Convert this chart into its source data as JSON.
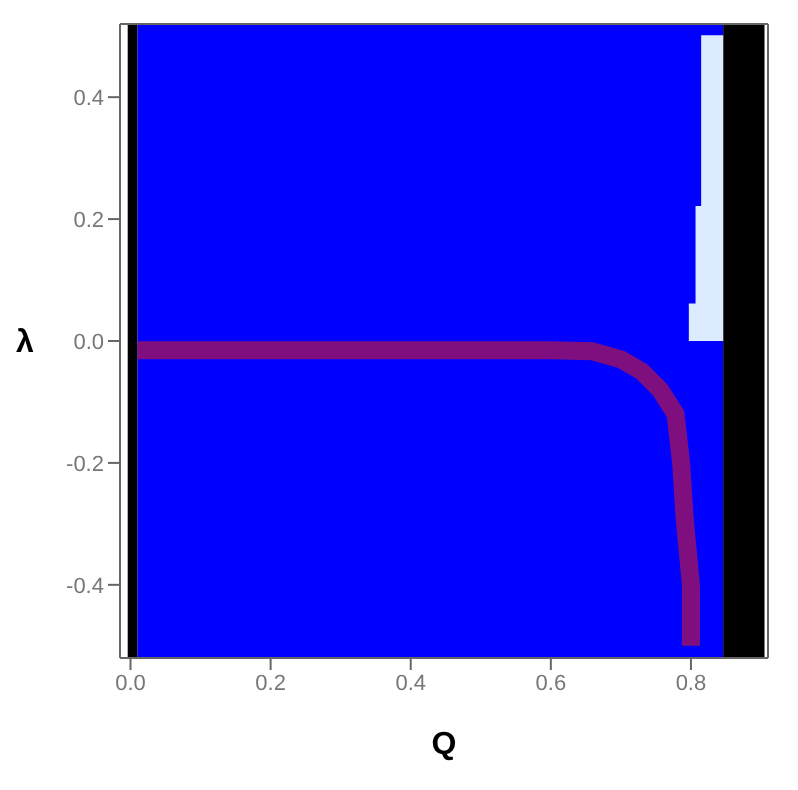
{
  "chart_data": {
    "type": "area",
    "xlabel": "Q",
    "ylabel": "λ",
    "xlim": [
      -0.015,
      0.91
    ],
    "ylim": [
      -0.52,
      0.52
    ],
    "xticks": [
      {
        "value": 0,
        "label": "0.0"
      },
      {
        "value": 0.2,
        "label": "0.2"
      },
      {
        "value": 0.4,
        "label": "0.4"
      },
      {
        "value": 0.6,
        "label": "0.6"
      },
      {
        "value": 0.8,
        "label": "0.8"
      }
    ],
    "yticks": [
      {
        "value": -0.4,
        "label": "-0.4"
      },
      {
        "value": -0.2,
        "label": "-0.2"
      },
      {
        "value": 0,
        "label": "0.0"
      },
      {
        "value": 0.2,
        "label": "0.2"
      },
      {
        "value": 0.4,
        "label": "0.4"
      }
    ],
    "bands": [
      {
        "axis": "x",
        "from": -0.004,
        "to": 0.01,
        "color": "#000000"
      },
      {
        "axis": "x",
        "from": 0.01,
        "to": 0.846,
        "color": "#0000ff"
      },
      {
        "axis": "x",
        "from": 0.846,
        "to": 0.905,
        "color": "#000000"
      }
    ],
    "series": [
      {
        "color": "#dcebff",
        "x": [
          0.797,
          0.808,
          0.808,
          0.816,
          0.816,
          0.846
        ],
        "values": [
          0.06,
          0.06,
          0.22,
          0.22,
          0.5,
          0.5
        ]
      },
      {
        "type": "line",
        "color": "#7f0f7f",
        "x": [
          0.01,
          0.3,
          0.6,
          0.66,
          0.7,
          0.73,
          0.756,
          0.778,
          0.786,
          0.791,
          0.8,
          0.8
        ],
        "values": [
          -0.015,
          -0.015,
          -0.015,
          -0.017,
          -0.03,
          -0.05,
          -0.08,
          -0.12,
          -0.2,
          -0.29,
          -0.4,
          -0.5
        ]
      }
    ],
    "grid": false,
    "marker": "none",
    "line_style": "solid"
  }
}
